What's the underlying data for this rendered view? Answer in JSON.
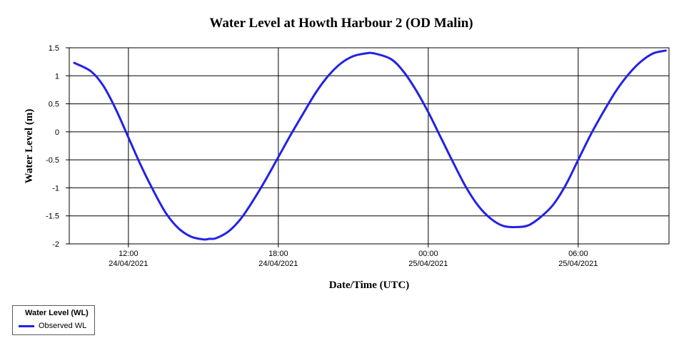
{
  "chart_data": {
    "type": "line",
    "title": "Water Level at Howth Harbour 2 (OD Malin)",
    "xlabel": "Date/Time (UTC)",
    "ylabel": "Water Level (m)",
    "xlim": [
      "2021-04-24 09:38",
      "2021-04-25 09:38"
    ],
    "ylim": [
      -2,
      1.5
    ],
    "yticks": [
      "1.5",
      "1",
      "0.5",
      "0",
      "-0.5",
      "-1",
      "-1.5",
      "-2"
    ],
    "xticks": [
      {
        "time": "12:00",
        "date": "24/04/2021"
      },
      {
        "time": "18:00",
        "date": "24/04/2021"
      },
      {
        "time": "00:00",
        "date": "25/04/2021"
      },
      {
        "time": "06:00",
        "date": "25/04/2021"
      }
    ],
    "grid": true,
    "legend": {
      "position": "bottom-left",
      "title": "Water Level (WL)"
    },
    "series": [
      {
        "name": "Observed WL",
        "color": "#2222e6",
        "x": [
          "2021-04-24 09:50",
          "2021-04-24 10:30",
          "2021-04-24 11:00",
          "2021-04-24 11:30",
          "2021-04-24 12:00",
          "2021-04-24 12:30",
          "2021-04-24 13:00",
          "2021-04-24 13:30",
          "2021-04-24 14:00",
          "2021-04-24 14:30",
          "2021-04-24 15:00",
          "2021-04-24 15:15",
          "2021-04-24 15:30",
          "2021-04-24 16:00",
          "2021-04-24 16:30",
          "2021-04-24 17:00",
          "2021-04-24 17:30",
          "2021-04-24 18:00",
          "2021-04-24 18:30",
          "2021-04-24 19:00",
          "2021-04-24 19:30",
          "2021-04-24 20:00",
          "2021-04-24 20:30",
          "2021-04-24 21:00",
          "2021-04-24 21:30",
          "2021-04-24 21:50",
          "2021-04-24 22:30",
          "2021-04-24 23:00",
          "2021-04-24 23:30",
          "2021-04-25 00:00",
          "2021-04-25 00:30",
          "2021-04-25 01:00",
          "2021-04-25 01:30",
          "2021-04-25 02:00",
          "2021-04-25 02:30",
          "2021-04-25 03:00",
          "2021-04-25 03:30",
          "2021-04-25 04:00",
          "2021-04-25 04:30",
          "2021-04-25 05:00",
          "2021-04-25 05:30",
          "2021-04-25 06:00",
          "2021-04-25 06:30",
          "2021-04-25 07:00",
          "2021-04-25 07:30",
          "2021-04-25 08:00",
          "2021-04-25 08:30",
          "2021-04-25 09:00",
          "2021-04-25 09:30"
        ],
        "values": [
          1.23,
          1.08,
          0.82,
          0.4,
          -0.1,
          -0.6,
          -1.05,
          -1.45,
          -1.72,
          -1.87,
          -1.92,
          -1.91,
          -1.9,
          -1.78,
          -1.55,
          -1.22,
          -0.85,
          -0.45,
          -0.05,
          0.33,
          0.7,
          1.0,
          1.22,
          1.35,
          1.4,
          1.4,
          1.3,
          1.08,
          0.75,
          0.35,
          -0.1,
          -0.55,
          -0.98,
          -1.32,
          -1.55,
          -1.68,
          -1.7,
          -1.67,
          -1.52,
          -1.3,
          -0.95,
          -0.5,
          -0.05,
          0.35,
          0.72,
          1.02,
          1.25,
          1.4,
          1.45
        ]
      }
    ]
  }
}
